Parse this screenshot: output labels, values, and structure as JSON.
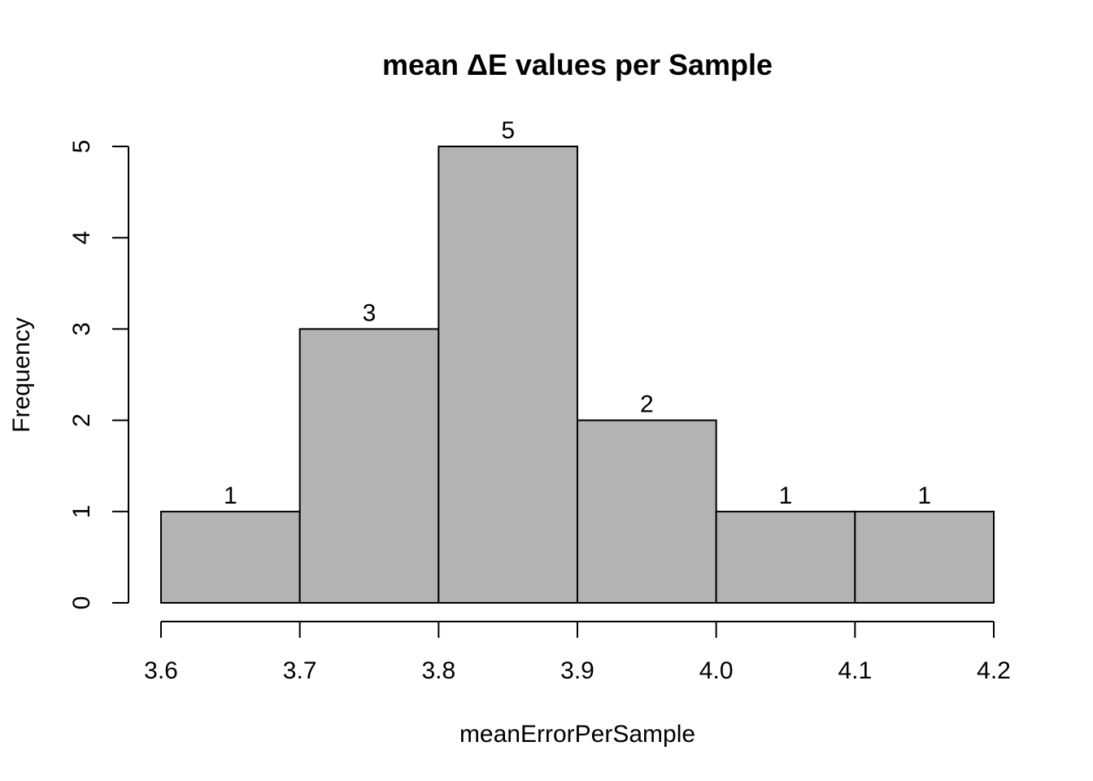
{
  "chart_data": {
    "type": "bar",
    "title": "mean ΔE values per Sample",
    "xlabel": "meanErrorPerSample",
    "ylabel": "Frequency",
    "bins": [
      {
        "from": 3.6,
        "to": 3.7,
        "count": 1
      },
      {
        "from": 3.7,
        "to": 3.8,
        "count": 3
      },
      {
        "from": 3.8,
        "to": 3.9,
        "count": 5
      },
      {
        "from": 3.9,
        "to": 4.0,
        "count": 2
      },
      {
        "from": 4.0,
        "to": 4.1,
        "count": 1
      },
      {
        "from": 4.1,
        "to": 4.2,
        "count": 1
      }
    ],
    "data_labels": [
      "1",
      "3",
      "5",
      "2",
      "1",
      "1"
    ],
    "xlim": [
      3.6,
      4.2
    ],
    "ylim": [
      0,
      5
    ],
    "x_ticks": [
      3.6,
      3.7,
      3.8,
      3.9,
      4.0,
      4.1,
      4.2
    ],
    "x_tick_labels": [
      "3.6",
      "3.7",
      "3.8",
      "3.9",
      "4.0",
      "4.1",
      "4.2"
    ],
    "y_ticks": [
      0,
      1,
      2,
      3,
      4,
      5
    ],
    "y_tick_labels": [
      "0",
      "1",
      "2",
      "3",
      "4",
      "5"
    ],
    "bar_color": "#b3b3b3",
    "grid": false,
    "legend": false
  }
}
